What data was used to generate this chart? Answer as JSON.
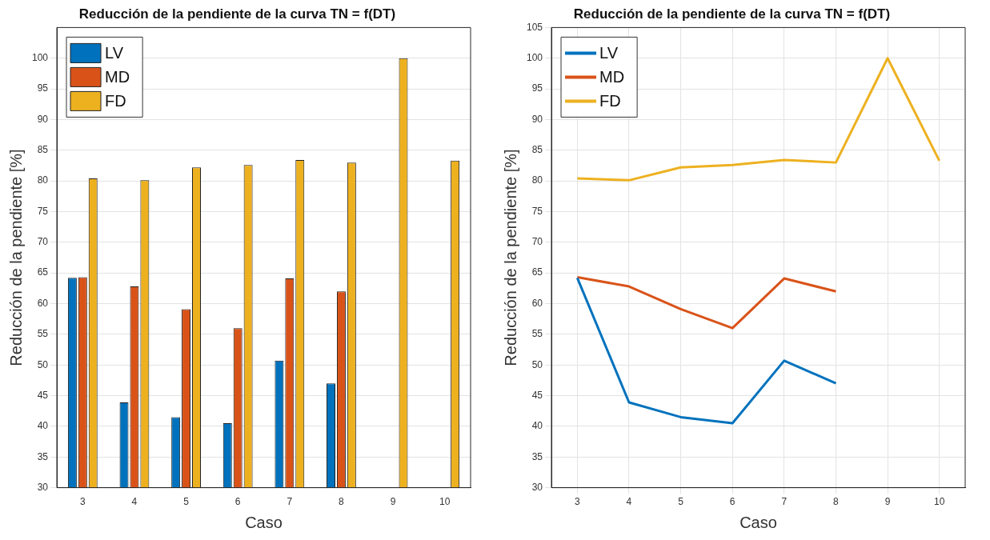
{
  "chart_data": [
    {
      "type": "bar",
      "title": "Reducción de la pendiente de la curva TN = f(DT)",
      "xlabel": "Caso",
      "ylabel": "Reducción de la pendiente [%]",
      "categories": [
        "3",
        "4",
        "5",
        "6",
        "7",
        "8",
        "9",
        "10"
      ],
      "series": [
        {
          "name": "LV",
          "color": "#0072bd",
          "values": [
            64.2,
            43.9,
            41.5,
            40.5,
            50.7,
            47.0,
            null,
            null
          ]
        },
        {
          "name": "MD",
          "color": "#d95319",
          "values": [
            64.3,
            62.8,
            59.1,
            56.0,
            64.1,
            62.0,
            null,
            null
          ]
        },
        {
          "name": "FD",
          "color": "#edb120",
          "values": [
            80.4,
            80.1,
            82.2,
            82.6,
            83.4,
            83.0,
            100,
            83.3
          ]
        }
      ],
      "ylim": [
        30,
        105
      ],
      "yticks": [
        30,
        35,
        40,
        45,
        50,
        55,
        60,
        65,
        70,
        75,
        80,
        85,
        90,
        95,
        100
      ],
      "grid": "y",
      "legend": "top left"
    },
    {
      "type": "line",
      "title": "Reducción de la pendiente de la curva TN = f(DT)",
      "xlabel": "Caso",
      "ylabel": "Reducción de la pendiente [%]",
      "categories": [
        "3",
        "4",
        "5",
        "6",
        "7",
        "8",
        "9",
        "10"
      ],
      "series": [
        {
          "name": "LV",
          "color": "#0072bd",
          "values": [
            64.2,
            43.9,
            41.5,
            40.5,
            50.7,
            47.0,
            null,
            null
          ]
        },
        {
          "name": "MD",
          "color": "#d95319",
          "values": [
            64.3,
            62.8,
            59.1,
            56.0,
            64.1,
            62.0,
            null,
            null
          ]
        },
        {
          "name": "FD",
          "color": "#edb120",
          "values": [
            80.4,
            80.1,
            82.2,
            82.6,
            83.4,
            83.0,
            100,
            83.3
          ]
        }
      ],
      "ylim": [
        30,
        105
      ],
      "yticks": [
        30,
        35,
        40,
        45,
        50,
        55,
        60,
        65,
        70,
        75,
        80,
        85,
        90,
        95,
        100,
        105
      ],
      "grid": true,
      "legend": "top left"
    }
  ]
}
